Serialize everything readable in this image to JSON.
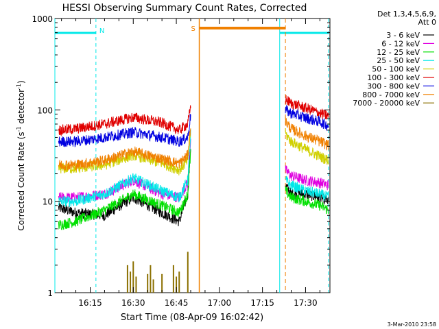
{
  "chart_data": {
    "type": "line",
    "title": "HESSI Observing Summary Count Rates, Corrected",
    "xlabel": "Start Time (08-Apr-09 16:02:42)",
    "ylabel_main": "Corrected Count Rate (s",
    "ylabel_sup1": "-1",
    "ylabel_mid": " detector",
    "ylabel_sup2": "-1",
    "ylabel_end": ")",
    "yscale": "log",
    "ylim": [
      1,
      1000
    ],
    "xlim": [
      "16:02:42",
      "17:38:30"
    ],
    "x_ticks": [
      "16:15",
      "16:30",
      "16:45",
      "17:00",
      "17:15",
      "17:30"
    ],
    "y_ticks": [
      "1",
      "10",
      "100",
      "1000"
    ],
    "legend_title_1": "Det 1,3,4,5,6,9,",
    "legend_title_2": "Att 0",
    "legend_position": "right",
    "series": [
      {
        "name": "3 - 6 keV",
        "color": "#000000",
        "segments": [
          {
            "x": [
              "16:04",
              "16:10",
              "16:20",
              "16:30",
              "16:40",
              "16:46",
              "16:49",
              "16:50"
            ],
            "y": [
              8.5,
              7.5,
              7.0,
              11.0,
              7.5,
              6.0,
              12,
              40
            ]
          },
          {
            "x": [
              "17:23",
              "17:25",
              "17:30",
              "17:35",
              "17:38"
            ],
            "y": [
              15,
              12,
              12,
              11,
              10
            ]
          }
        ]
      },
      {
        "name": "6 - 12 keV",
        "color": "#e000e0",
        "segments": [
          {
            "x": [
              "16:04",
              "16:10",
              "16:20",
              "16:30",
              "16:40",
              "16:46",
              "16:49",
              "16:50"
            ],
            "y": [
              11,
              11,
              12,
              17,
              12,
              11,
              16,
              50
            ]
          },
          {
            "x": [
              "17:23",
              "17:25",
              "17:30",
              "17:35",
              "17:38"
            ],
            "y": [
              22,
              19,
              17,
              16,
              15
            ]
          }
        ]
      },
      {
        "name": "12 - 25 keV",
        "color": "#00e000",
        "segments": [
          {
            "x": [
              "16:04",
              "16:10",
              "16:20",
              "16:30",
              "16:40",
              "16:46",
              "16:49",
              "16:50"
            ],
            "y": [
              5.5,
              6.0,
              8.0,
              12.0,
              9.0,
              7.5,
              12,
              35
            ]
          },
          {
            "x": [
              "17:23",
              "17:25",
              "17:30",
              "17:35",
              "17:38"
            ],
            "y": [
              13,
              11,
              10,
              9,
              8
            ]
          }
        ]
      },
      {
        "name": "25 - 50 keV",
        "color": "#00e8e8",
        "segments": [
          {
            "x": [
              "16:04",
              "16:10",
              "16:20",
              "16:30",
              "16:40",
              "16:46",
              "16:49",
              "16:50"
            ],
            "y": [
              10,
              10,
              12,
              18,
              13,
              11,
              17,
              55
            ]
          },
          {
            "x": [
              "17:23",
              "17:25",
              "17:30",
              "17:35",
              "17:38"
            ],
            "y": [
              17,
              15,
              13,
              12,
              11
            ]
          }
        ]
      },
      {
        "name": "50 - 100 keV",
        "color": "#d0d000",
        "segments": [
          {
            "x": [
              "16:04",
              "16:10",
              "16:20",
              "16:30",
              "16:40",
              "16:46",
              "16:49",
              "16:50"
            ],
            "y": [
              23,
              23,
              25,
              32,
              26,
              22,
              28,
              60
            ]
          },
          {
            "x": [
              "17:23",
              "17:25",
              "17:30",
              "17:35",
              "17:38"
            ],
            "y": [
              55,
              45,
              37,
              31,
              28
            ]
          }
        ]
      },
      {
        "name": "100 - 300 keV",
        "color": "#e00000",
        "segments": [
          {
            "x": [
              "16:04",
              "16:10",
              "16:20",
              "16:30",
              "16:40",
              "16:46",
              "16:49",
              "16:50"
            ],
            "y": [
              60,
              62,
              70,
              83,
              72,
              60,
              70,
              110
            ]
          },
          {
            "x": [
              "17:23",
              "17:25",
              "17:30",
              "17:35",
              "17:38"
            ],
            "y": [
              130,
              118,
              105,
              92,
              85
            ]
          }
        ]
      },
      {
        "name": "300 - 800 keV",
        "color": "#0000e0",
        "segments": [
          {
            "x": [
              "16:04",
              "16:10",
              "16:20",
              "16:30",
              "16:40",
              "16:46",
              "16:49",
              "16:50"
            ],
            "y": [
              45,
              45,
              50,
              57,
              50,
              45,
              50,
              90
            ]
          },
          {
            "x": [
              "17:23",
              "17:25",
              "17:30",
              "17:35",
              "17:38"
            ],
            "y": [
              100,
              92,
              82,
              74,
              67
            ]
          }
        ]
      },
      {
        "name": "800 - 7000 keV",
        "color": "#f08000",
        "segments": [
          {
            "x": [
              "16:04",
              "16:10",
              "16:20",
              "16:30",
              "16:40",
              "16:46",
              "16:49",
              "16:50"
            ],
            "y": [
              25,
              25,
              28,
              35,
              29,
              26,
              32,
              70
            ]
          },
          {
            "x": [
              "17:23",
              "17:25",
              "17:30",
              "17:35",
              "17:38"
            ],
            "y": [
              75,
              62,
              52,
              45,
              41
            ]
          }
        ]
      },
      {
        "name": "7000 - 20000 keV",
        "color": "#8b7000",
        "spikes": {
          "x": [
            "16:28",
            "16:29",
            "16:30",
            "16:31",
            "16:35",
            "16:36",
            "16:37",
            "16:40",
            "16:44",
            "16:45",
            "16:46",
            "16:49"
          ],
          "y": [
            2.0,
            1.7,
            2.2,
            1.5,
            1.6,
            2.0,
            1.4,
            1.6,
            2.0,
            1.5,
            1.7,
            2.8
          ]
        }
      }
    ],
    "annotations": {
      "N_label": "N",
      "S_label": "S",
      "N_intervals": [
        {
          "start": "16:02:42",
          "end": "16:17"
        },
        {
          "start": "17:21",
          "end": "17:38"
        }
      ],
      "S_interval": {
        "start": "16:53",
        "end": "17:23"
      }
    },
    "timestamp": "3-Mar-2010 23:58"
  }
}
